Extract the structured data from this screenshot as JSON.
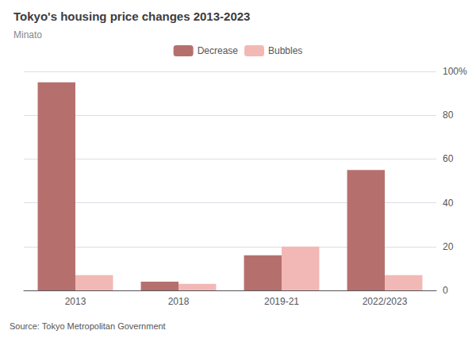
{
  "chart_data": {
    "type": "bar",
    "title": "Tokyo's housing price changes 2013-2023",
    "subtitle": "Minato",
    "categories": [
      "2013",
      "2018",
      "2019-21",
      "2022/2023"
    ],
    "series": [
      {
        "name": "Decrease",
        "color": "#b5706e",
        "values": [
          95,
          4,
          16,
          55
        ]
      },
      {
        "name": "Bubbles",
        "color": "#f2b8b5",
        "values": [
          7,
          3,
          20,
          7
        ]
      }
    ],
    "ylim": [
      0,
      100
    ],
    "yticks": [
      0,
      20,
      40,
      60,
      80,
      {
        "value": 100,
        "label": "100%"
      }
    ],
    "grid": true,
    "legend": "top",
    "footer": "Source: Tokyo Metropolitan Government"
  }
}
